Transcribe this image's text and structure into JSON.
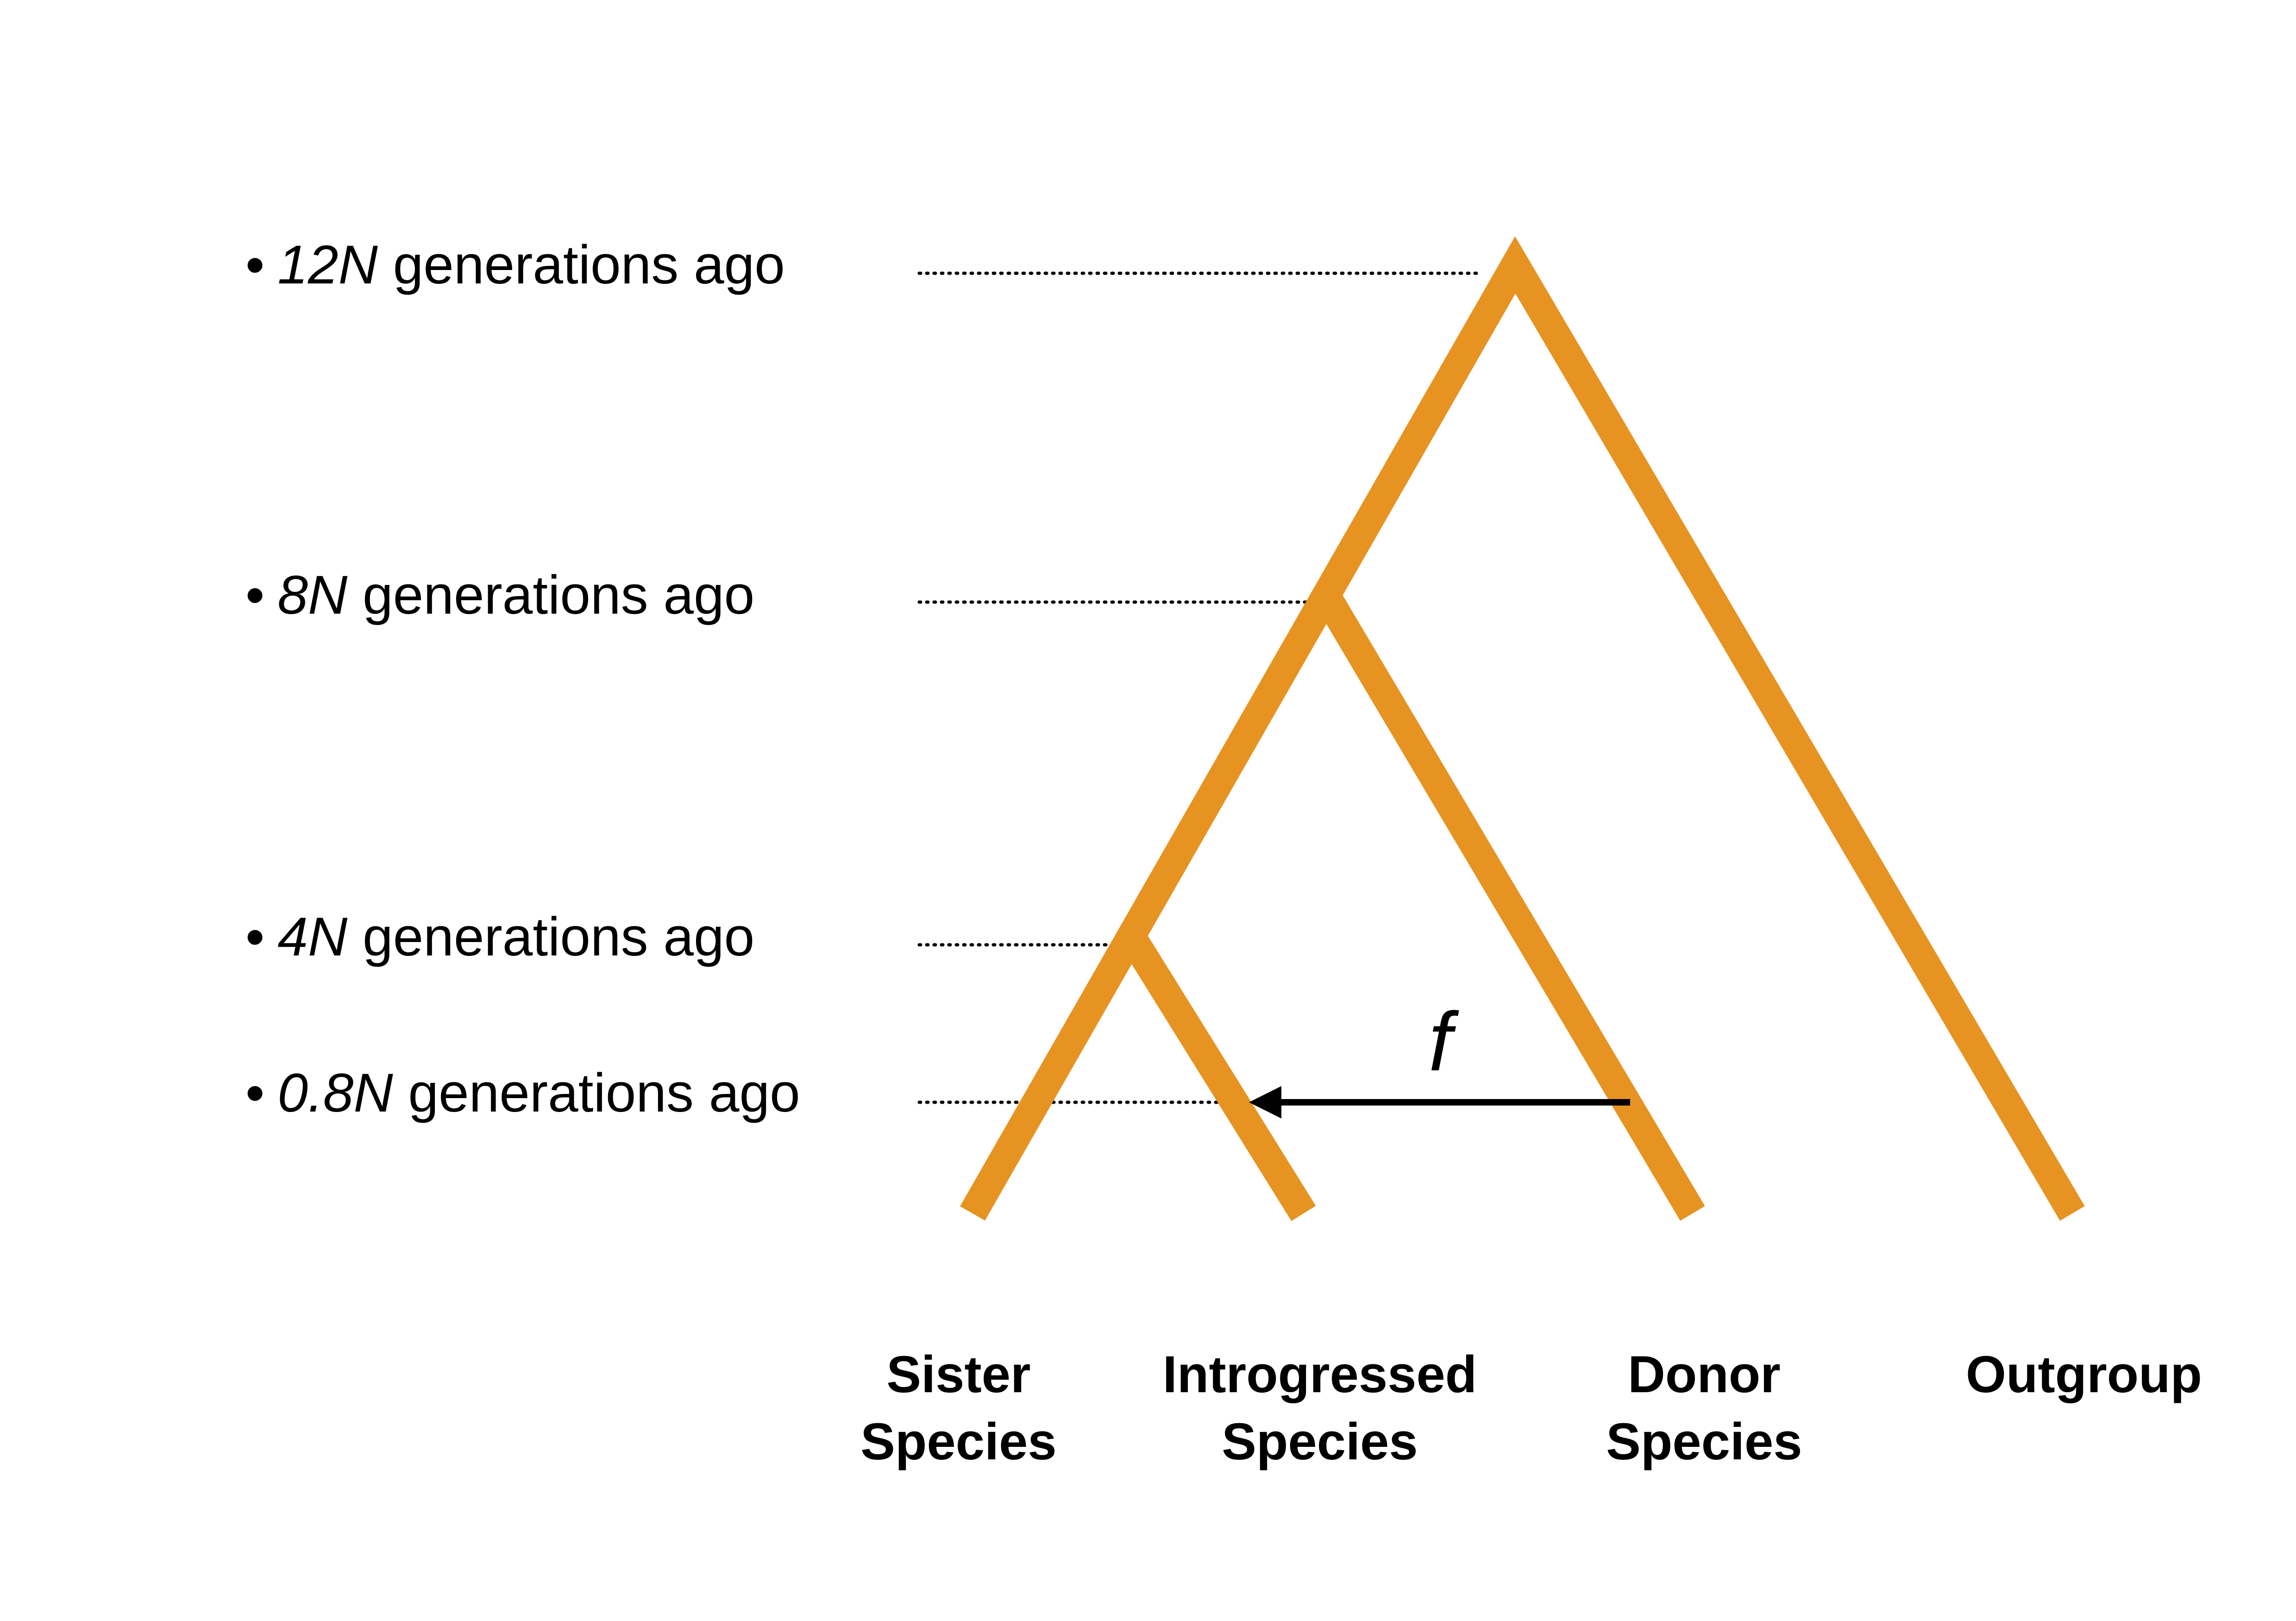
{
  "time_labels": [
    {
      "bullet": "•",
      "multiplier": "12N",
      "text": "generations ago"
    },
    {
      "bullet": "•",
      "multiplier": "8N",
      "text": "generations ago"
    },
    {
      "bullet": "•",
      "multiplier": "4N",
      "text": "generations ago"
    },
    {
      "bullet": "•",
      "multiplier": "0.8N",
      "text": "generations ago"
    }
  ],
  "species": [
    {
      "line1": "Sister",
      "line2": "Species"
    },
    {
      "line1": "Introgressed",
      "line2": "Species"
    },
    {
      "line1": "Donor",
      "line2": "Species"
    },
    {
      "line1": "Outgroup",
      "line2": ""
    }
  ],
  "introgression": {
    "label": "f"
  },
  "colors": {
    "branch": "#E69322",
    "arrow": "#000000",
    "guide": "#000000"
  }
}
